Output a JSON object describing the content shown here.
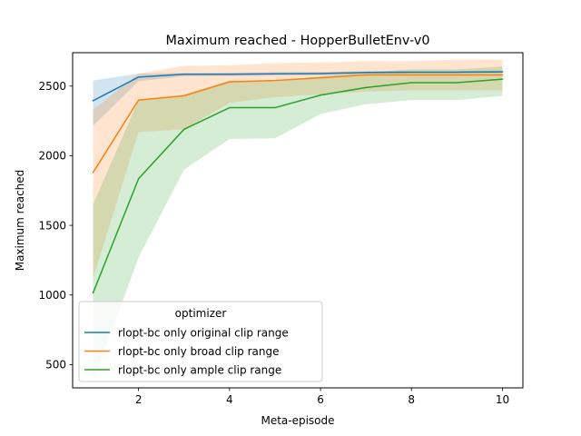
{
  "chart_data": {
    "type": "line",
    "title": "Maximum reached - HopperBulletEnv-v0",
    "xlabel": "Meta-episode",
    "ylabel": "Maximum reached",
    "xlim": [
      0.55,
      10.45
    ],
    "ylim": [
      333,
      2740
    ],
    "x_ticks": [
      2,
      4,
      6,
      8,
      10
    ],
    "y_ticks": [
      500,
      1000,
      1500,
      2000,
      2500
    ],
    "grid": false,
    "legend_title": "optimizer",
    "legend_position": "lower-left",
    "x": [
      1,
      2,
      3,
      4,
      5,
      6,
      7,
      8,
      9,
      10
    ],
    "series": [
      {
        "name": "rlopt-bc only original clip range",
        "color": "#1f77b4",
        "values": [
          2395,
          2565,
          2585,
          2585,
          2588,
          2590,
          2598,
          2600,
          2600,
          2602
        ],
        "lower": [
          2215,
          2535,
          2570,
          2572,
          2575,
          2578,
          2588,
          2592,
          2592,
          2595
        ],
        "upper": [
          2540,
          2590,
          2595,
          2597,
          2600,
          2602,
          2608,
          2608,
          2608,
          2610
        ]
      },
      {
        "name": "rlopt-bc only broad clip range",
        "color": "#ff7f0e",
        "values": [
          1880,
          2400,
          2430,
          2530,
          2540,
          2560,
          2580,
          2580,
          2580,
          2580
        ],
        "lower": [
          1120,
          2170,
          2190,
          2380,
          2420,
          2440,
          2460,
          2470,
          2470,
          2470
        ],
        "upper": [
          2330,
          2590,
          2645,
          2650,
          2665,
          2670,
          2680,
          2680,
          2690,
          2690
        ]
      },
      {
        "name": "rlopt-bc only ample clip range",
        "color": "#2ca02c",
        "values": [
          1015,
          1835,
          2190,
          2345,
          2345,
          2435,
          2490,
          2525,
          2525,
          2550
        ],
        "lower": [
          380,
          1270,
          1900,
          2120,
          2125,
          2300,
          2370,
          2400,
          2400,
          2430
        ],
        "upper": [
          1650,
          2400,
          2440,
          2540,
          2535,
          2570,
          2600,
          2620,
          2620,
          2640
        ]
      }
    ]
  }
}
